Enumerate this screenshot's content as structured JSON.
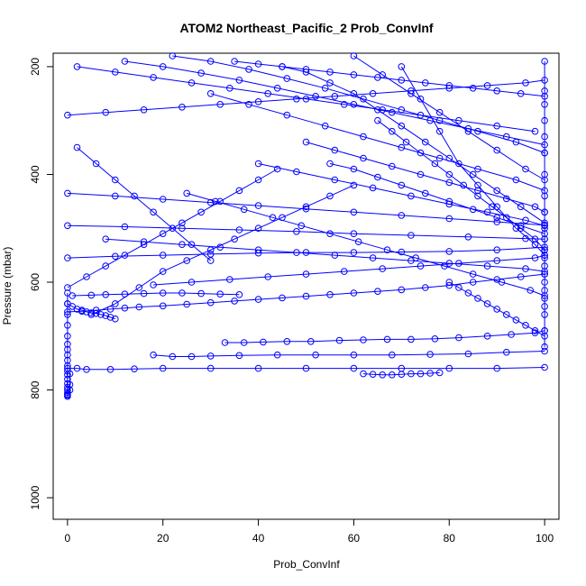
{
  "chart_data": {
    "type": "line",
    "title": "ATOM2 Northeast_Pacific_2 Prob_ConvInf",
    "xlabel": "Prob_ConvInf",
    "ylabel": "Pressure (mbar)",
    "xlim": [
      -3,
      103
    ],
    "ylim": [
      1040,
      175
    ],
    "y_inverted": true,
    "x_ticks": [
      0,
      20,
      40,
      60,
      80,
      100
    ],
    "y_ticks": [
      200,
      400,
      600,
      800,
      1000
    ],
    "grid": false,
    "legend": "none",
    "series_color": "#0000ff",
    "marker": "open-circle",
    "series": [
      {
        "x": [
          0,
          0,
          0,
          0,
          0,
          0,
          0,
          0,
          0,
          0,
          0,
          0,
          0,
          0,
          0,
          0,
          0,
          0,
          0,
          0,
          0.5,
          0.5,
          0.5
        ],
        "y": [
          620,
          640,
          660,
          680,
          700,
          715,
          725,
          735,
          745,
          755,
          765,
          772,
          780,
          788,
          795,
          800,
          805,
          808,
          810,
          812,
          790,
          770,
          800
        ]
      },
      {
        "x": [
          100,
          100,
          100,
          100,
          100,
          100,
          100,
          100,
          100,
          100,
          100,
          100,
          100,
          100,
          100,
          100,
          100,
          100,
          100,
          100,
          100,
          100
        ],
        "y": [
          190,
          245,
          270,
          300,
          330,
          360,
          400,
          440,
          470,
          500,
          520,
          540,
          555,
          570,
          585,
          600,
          615,
          630,
          645,
          660,
          690,
          720
        ]
      },
      {
        "x": [
          0,
          2,
          4,
          9,
          14,
          20,
          30,
          40,
          50,
          60,
          70,
          80,
          90,
          100
        ],
        "y": [
          760,
          760,
          762,
          762,
          761,
          760,
          760,
          760,
          760,
          760,
          760,
          760,
          760,
          758
        ]
      },
      {
        "x": [
          18,
          22,
          26,
          30,
          36,
          44,
          52,
          60,
          68,
          76,
          84,
          92,
          100
        ],
        "y": [
          735,
          738,
          738,
          737,
          736,
          735,
          735,
          735,
          735,
          734,
          733,
          730,
          728
        ]
      },
      {
        "x": [
          33,
          37,
          41,
          46,
          51,
          57,
          62,
          67,
          72,
          77,
          82,
          88,
          93,
          98,
          100
        ],
        "y": [
          712,
          712,
          711,
          710,
          710,
          708,
          707,
          706,
          706,
          705,
          703,
          700,
          697,
          694,
          690
        ]
      },
      {
        "x": [
          62,
          64,
          66,
          68,
          70,
          72,
          74,
          76,
          78
        ],
        "y": [
          770,
          771,
          772,
          772,
          771,
          770,
          770,
          769,
          768
        ]
      },
      {
        "x": [
          0,
          3,
          6,
          9,
          12,
          15,
          20,
          25,
          30,
          35,
          40,
          45,
          50,
          55,
          60,
          65,
          70,
          75,
          80,
          85,
          90,
          95,
          100
        ],
        "y": [
          655,
          654,
          652,
          650,
          648,
          646,
          644,
          641,
          638,
          635,
          632,
          629,
          626,
          623,
          620,
          617,
          614,
          610,
          606,
          600,
          595,
          590,
          585
        ]
      },
      {
        "x": [
          1,
          5,
          8,
          12,
          16,
          20,
          24,
          28,
          32,
          36
        ],
        "y": [
          625,
          624,
          623,
          622,
          621,
          620,
          620,
          621,
          622,
          623
        ]
      },
      {
        "x": [
          0,
          10,
          20,
          30,
          40,
          50,
          60,
          70,
          80,
          90,
          100
        ],
        "y": [
          555,
          552,
          550,
          548,
          546,
          545,
          545,
          544,
          543,
          540,
          535
        ]
      },
      {
        "x": [
          0,
          12,
          24,
          36,
          48,
          60,
          72,
          84,
          96,
          100
        ],
        "y": [
          495,
          497,
          500,
          503,
          506,
          510,
          513,
          516,
          519,
          520
        ]
      },
      {
        "x": [
          0,
          10,
          20,
          30,
          40,
          50,
          60,
          70,
          80,
          90,
          100
        ],
        "y": [
          435,
          440,
          446,
          452,
          458,
          464,
          470,
          476,
          482,
          488,
          494
        ]
      },
      {
        "x": [
          0,
          8,
          16,
          24,
          32,
          40,
          48,
          56,
          64,
          72,
          80,
          88,
          96,
          100
        ],
        "y": [
          290,
          285,
          280,
          275,
          270,
          265,
          260,
          255,
          250,
          245,
          240,
          235,
          230,
          225
        ]
      },
      {
        "x": [
          2,
          10,
          18,
          26,
          34,
          42,
          50,
          58,
          66,
          74,
          82,
          90,
          98
        ],
        "y": [
          200,
          210,
          220,
          230,
          240,
          250,
          260,
          270,
          280,
          290,
          300,
          310,
          320
        ]
      },
      {
        "x": [
          12,
          20,
          28,
          36,
          44,
          52,
          60,
          68,
          76,
          84,
          92,
          100
        ],
        "y": [
          190,
          200,
          212,
          225,
          240,
          255,
          270,
          285,
          300,
          315,
          330,
          345
        ]
      },
      {
        "x": [
          22,
          30,
          38,
          46,
          54,
          62,
          70,
          78,
          86,
          94,
          100
        ],
        "y": [
          180,
          190,
          205,
          222,
          240,
          260,
          280,
          300,
          320,
          340,
          360
        ]
      },
      {
        "x": [
          30,
          38,
          46,
          54,
          62,
          70,
          78,
          86,
          94,
          100
        ],
        "y": [
          250,
          270,
          290,
          310,
          330,
          350,
          370,
          390,
          410,
          430
        ]
      },
      {
        "x": [
          40,
          48,
          56,
          64,
          72,
          80,
          88,
          96,
          100
        ],
        "y": [
          380,
          395,
          410,
          425,
          440,
          455,
          470,
          485,
          495
        ]
      },
      {
        "x": [
          50,
          56,
          62,
          68,
          74,
          80,
          86,
          92,
          98,
          100
        ],
        "y": [
          340,
          355,
          370,
          385,
          400,
          415,
          430,
          445,
          460,
          470
        ]
      },
      {
        "x": [
          60,
          66,
          72,
          78,
          84,
          90,
          96,
          100
        ],
        "y": [
          180,
          215,
          250,
          285,
          320,
          355,
          390,
          410
        ]
      },
      {
        "x": [
          70,
          74,
          78,
          82,
          86,
          90,
          94,
          98,
          100
        ],
        "y": [
          200,
          260,
          320,
          380,
          420,
          460,
          500,
          530,
          550
        ]
      },
      {
        "x": [
          25,
          31,
          37,
          43,
          49,
          55,
          61,
          67,
          73,
          79,
          85,
          91,
          97,
          100
        ],
        "y": [
          435,
          450,
          465,
          480,
          495,
          510,
          525,
          540,
          555,
          570,
          585,
          600,
          615,
          625
        ]
      },
      {
        "x": [
          8,
          16,
          24,
          32,
          40,
          48,
          56,
          64,
          72,
          80,
          88,
          96,
          100
        ],
        "y": [
          520,
          525,
          530,
          535,
          540,
          545,
          550,
          555,
          560,
          565,
          570,
          575,
          580
        ]
      },
      {
        "x": [
          18,
          26,
          34,
          42,
          50,
          58,
          66,
          74,
          82,
          90,
          98,
          100
        ],
        "y": [
          605,
          600,
          595,
          590,
          585,
          580,
          575,
          570,
          565,
          560,
          555,
          550
        ]
      },
      {
        "x": [
          5,
          10,
          15,
          20,
          25,
          30,
          35,
          40,
          45,
          50,
          55,
          60
        ],
        "y": [
          660,
          640,
          610,
          580,
          560,
          540,
          520,
          500,
          480,
          460,
          440,
          420
        ]
      },
      {
        "x": [
          45,
          50,
          55,
          60,
          65,
          70,
          75,
          80,
          85,
          90,
          95,
          100
        ],
        "y": [
          200,
          210,
          230,
          250,
          280,
          310,
          340,
          370,
          400,
          430,
          460,
          490
        ]
      },
      {
        "x": [
          0,
          4,
          8,
          12,
          16,
          20,
          24,
          28,
          32,
          36,
          40,
          44
        ],
        "y": [
          610,
          590,
          570,
          550,
          530,
          510,
          490,
          470,
          450,
          430,
          410,
          390
        ]
      },
      {
        "x": [
          55,
          60,
          65,
          70,
          75,
          80,
          85,
          90,
          95,
          100
        ],
        "y": [
          380,
          390,
          405,
          420,
          435,
          450,
          465,
          480,
          495,
          510
        ]
      },
      {
        "x": [
          65,
          68,
          71,
          74,
          77,
          80,
          83,
          86,
          89,
          92,
          95,
          98,
          100
        ],
        "y": [
          300,
          320,
          340,
          360,
          380,
          400,
          420,
          440,
          460,
          480,
          500,
          520,
          540
        ]
      },
      {
        "x": [
          35,
          40,
          45,
          50,
          55,
          60,
          65,
          70,
          75,
          80,
          85,
          90,
          95,
          100
        ],
        "y": [
          190,
          195,
          200,
          205,
          210,
          215,
          220,
          225,
          230,
          235,
          240,
          245,
          250,
          255
        ]
      },
      {
        "x": [
          2,
          6,
          10,
          14,
          18,
          22,
          26,
          30
        ],
        "y": [
          350,
          380,
          410,
          440,
          470,
          500,
          530,
          560
        ]
      },
      {
        "x": [
          0,
          1,
          2,
          3,
          4,
          5,
          6,
          7,
          8,
          9,
          10
        ],
        "y": [
          640,
          645,
          650,
          652,
          655,
          657,
          658,
          660,
          662,
          665,
          668
        ]
      },
      {
        "x": [
          80,
          82,
          84,
          86,
          88,
          90,
          92,
          94,
          96,
          98,
          100
        ],
        "y": [
          600,
          610,
          620,
          630,
          640,
          650,
          660,
          670,
          680,
          690,
          700
        ]
      }
    ]
  }
}
